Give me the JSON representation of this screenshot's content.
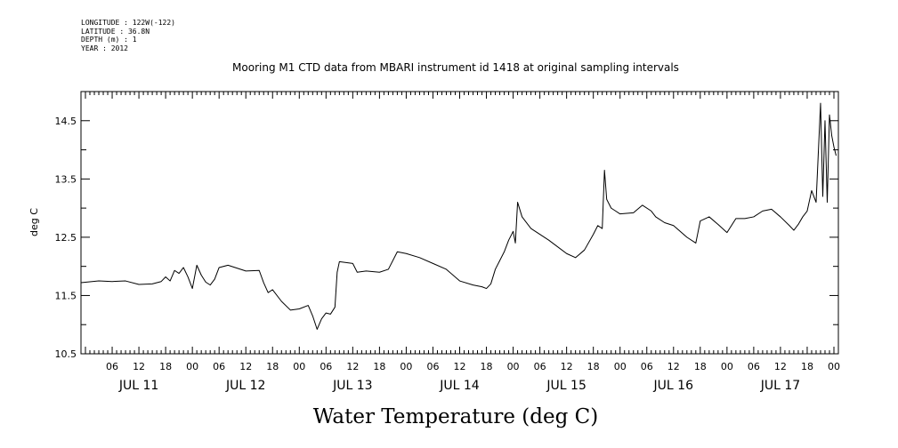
{
  "meta": {
    "longitude": "LONGITUDE : 122W(-122)",
    "latitude": "LATITUDE : 36.8N",
    "depth": "DEPTH (m) : 1",
    "year": "YEAR : 2012"
  },
  "chart_data": {
    "type": "line",
    "title": "Mooring M1 CTD data from MBARI instrument id 1418 at original sampling intervals",
    "xlabel": "Water Temperature (deg C)",
    "ylabel": "deg C",
    "ylim": [
      10.5,
      15.0
    ],
    "yticks": [
      10.5,
      11.5,
      12.5,
      13.5,
      14.5
    ],
    "xlim": [
      "2012-07-10T23:00",
      "2012-07-18T01:00"
    ],
    "hour_ticks": [
      "06",
      "12",
      "18",
      "00",
      "06",
      "12",
      "18",
      "00",
      "06",
      "12",
      "18",
      "00",
      "06",
      "12",
      "18",
      "00",
      "06",
      "12",
      "18",
      "00",
      "06",
      "12",
      "18",
      "00",
      "06",
      "12",
      "18",
      "00"
    ],
    "day_labels": [
      "JUL 11",
      "JUL 12",
      "JUL 13",
      "JUL 14",
      "JUL 15",
      "JUL 16",
      "JUL 17"
    ],
    "grid": false,
    "series": [
      {
        "color": "#000000",
        "x": [
          "2012-07-10T23:00",
          "2012-07-11T03:00",
          "2012-07-11T06:00",
          "2012-07-11T09:00",
          "2012-07-11T12:00",
          "2012-07-11T15:00",
          "2012-07-11T17:00",
          "2012-07-11T18:00",
          "2012-07-11T19:00",
          "2012-07-11T20:00",
          "2012-07-11T21:00",
          "2012-07-11T22:00",
          "2012-07-11T23:00",
          "2012-07-12T00:00",
          "2012-07-12T01:00",
          "2012-07-12T02:00",
          "2012-07-12T03:00",
          "2012-07-12T04:00",
          "2012-07-12T05:00",
          "2012-07-12T06:00",
          "2012-07-12T08:00",
          "2012-07-12T12:00",
          "2012-07-12T15:00",
          "2012-07-12T16:00",
          "2012-07-12T17:00",
          "2012-07-12T18:00",
          "2012-07-12T20:00",
          "2012-07-12T22:00",
          "2012-07-13T00:00",
          "2012-07-13T02:00",
          "2012-07-13T03:00",
          "2012-07-13T04:00",
          "2012-07-13T05:00",
          "2012-07-13T06:00",
          "2012-07-13T07:00",
          "2012-07-13T08:00",
          "2012-07-13T08:30",
          "2012-07-13T09:00",
          "2012-07-13T12:00",
          "2012-07-13T13:00",
          "2012-07-13T15:00",
          "2012-07-13T18:00",
          "2012-07-13T20:00",
          "2012-07-13T22:00",
          "2012-07-14T00:00",
          "2012-07-14T03:00",
          "2012-07-14T06:00",
          "2012-07-14T09:00",
          "2012-07-14T12:00",
          "2012-07-14T15:00",
          "2012-07-14T17:00",
          "2012-07-14T18:00",
          "2012-07-14T19:00",
          "2012-07-14T20:00",
          "2012-07-14T21:00",
          "2012-07-14T22:00",
          "2012-07-14T23:00",
          "2012-07-15T00:00",
          "2012-07-15T00:30",
          "2012-07-15T01:00",
          "2012-07-15T02:00",
          "2012-07-15T04:00",
          "2012-07-15T08:00",
          "2012-07-15T12:00",
          "2012-07-15T14:00",
          "2012-07-15T16:00",
          "2012-07-15T18:00",
          "2012-07-15T19:00",
          "2012-07-15T20:00",
          "2012-07-15T20:30",
          "2012-07-15T21:00",
          "2012-07-15T22:00",
          "2012-07-15T23:00",
          "2012-07-16T00:00",
          "2012-07-16T03:00",
          "2012-07-16T05:00",
          "2012-07-16T07:00",
          "2012-07-16T08:00",
          "2012-07-16T10:00",
          "2012-07-16T12:00",
          "2012-07-16T15:00",
          "2012-07-16T17:00",
          "2012-07-16T18:00",
          "2012-07-16T20:00",
          "2012-07-16T22:00",
          "2012-07-17T00:00",
          "2012-07-17T02:00",
          "2012-07-17T04:00",
          "2012-07-17T06:00",
          "2012-07-17T08:00",
          "2012-07-17T10:00",
          "2012-07-17T12:00",
          "2012-07-17T14:00",
          "2012-07-17T15:00",
          "2012-07-17T16:00",
          "2012-07-17T17:00",
          "2012-07-17T18:00",
          "2012-07-17T19:00",
          "2012-07-17T20:00",
          "2012-07-17T21:00",
          "2012-07-17T21:30",
          "2012-07-17T22:00",
          "2012-07-17T22:30",
          "2012-07-17T23:00",
          "2012-07-17T23:30",
          "2012-07-18T00:00",
          "2012-07-18T00:30"
        ],
        "values": [
          11.72,
          11.75,
          11.74,
          11.75,
          11.69,
          11.7,
          11.74,
          11.82,
          11.75,
          11.93,
          11.88,
          11.98,
          11.82,
          11.62,
          12.02,
          11.85,
          11.73,
          11.68,
          11.78,
          11.98,
          12.02,
          11.92,
          11.93,
          11.72,
          11.55,
          11.6,
          11.4,
          11.25,
          11.27,
          11.33,
          11.15,
          10.92,
          11.1,
          11.2,
          11.18,
          11.3,
          11.9,
          12.08,
          12.05,
          11.9,
          11.92,
          11.9,
          11.95,
          12.25,
          12.22,
          12.15,
          12.05,
          11.95,
          11.75,
          11.68,
          11.65,
          11.62,
          11.7,
          11.95,
          12.1,
          12.25,
          12.45,
          12.6,
          12.4,
          13.1,
          12.85,
          12.65,
          12.45,
          12.22,
          12.15,
          12.28,
          12.55,
          12.7,
          12.65,
          13.65,
          13.15,
          13.0,
          12.95,
          12.9,
          12.92,
          13.05,
          12.95,
          12.85,
          12.75,
          12.7,
          12.5,
          12.4,
          12.78,
          12.85,
          12.72,
          12.58,
          12.82,
          12.82,
          12.85,
          12.95,
          12.98,
          12.85,
          12.7,
          12.62,
          12.72,
          12.85,
          12.95,
          13.3,
          13.1,
          14.8,
          13.2,
          14.5,
          13.1,
          14.6,
          14.25,
          14.05,
          13.9
        ]
      }
    ]
  }
}
